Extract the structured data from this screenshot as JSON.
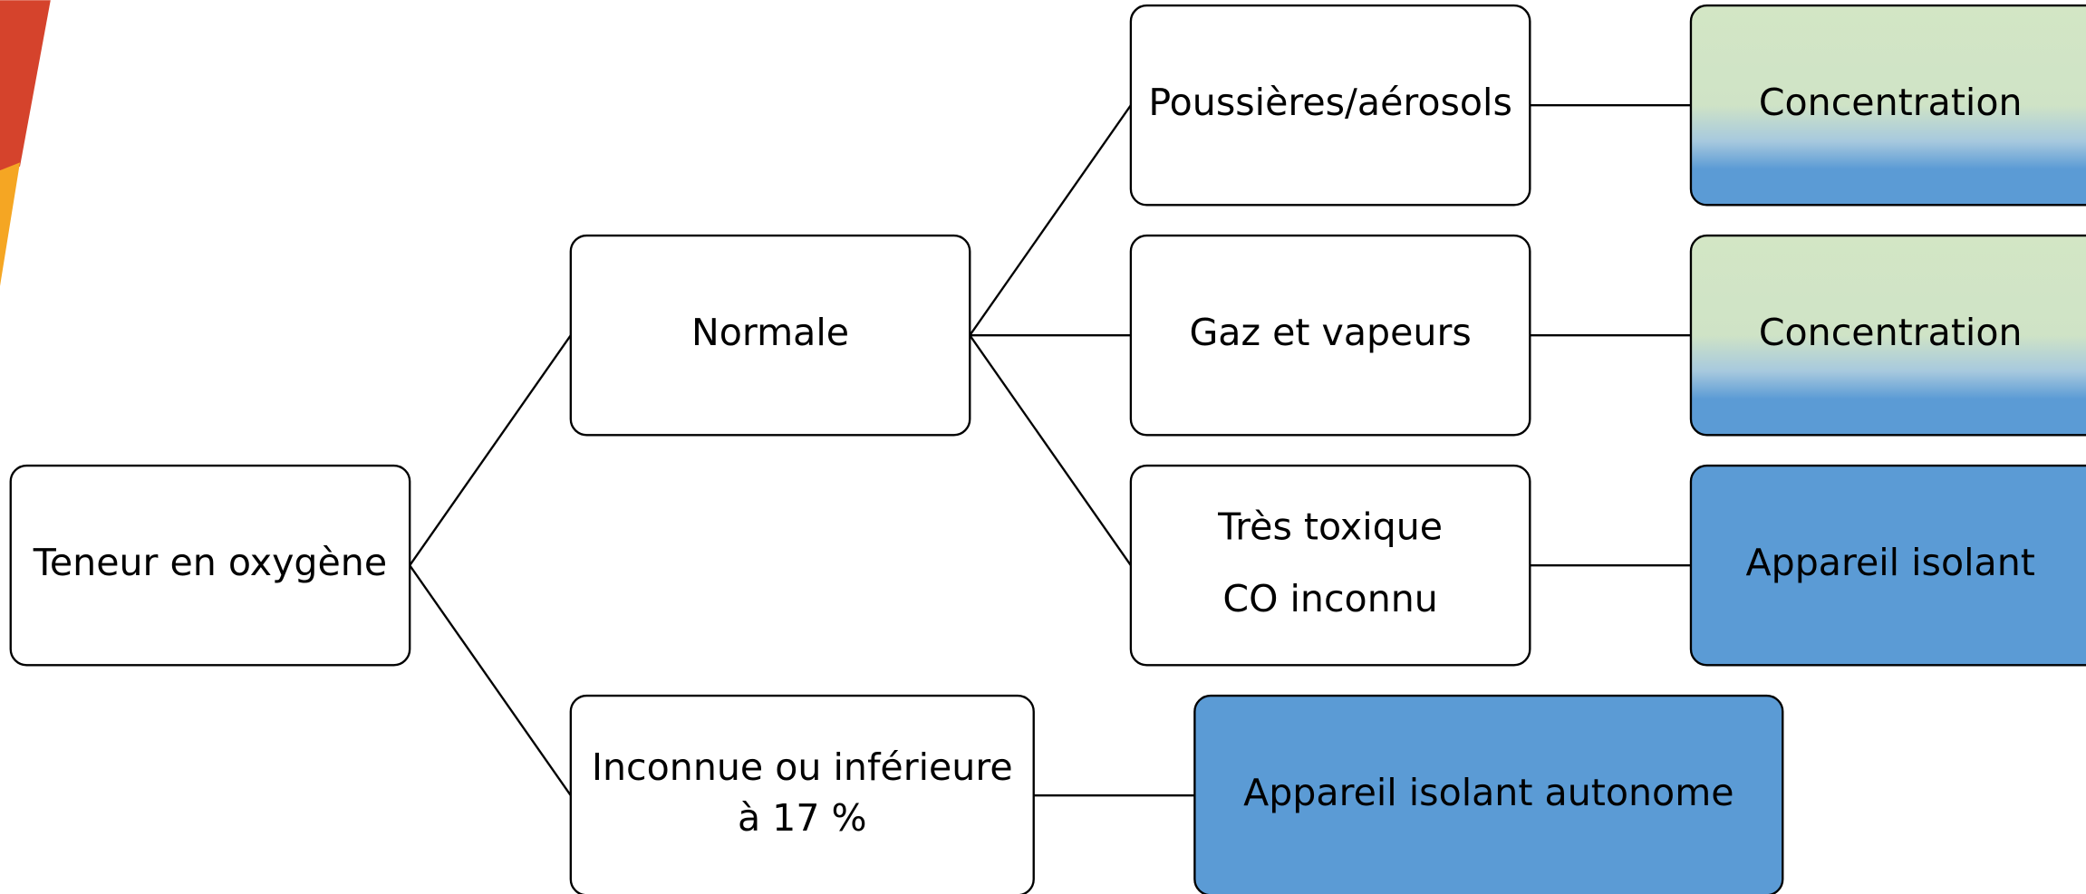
{
  "nodes": [
    {
      "lines": [
        "Teneur en oxygène"
      ]
    },
    {
      "lines": [
        "Normale"
      ]
    },
    {
      "lines": [
        "Inconnue ou inférieure",
        "à 17 %"
      ]
    },
    {
      "lines": [
        "Poussières/aérosols"
      ]
    },
    {
      "lines": [
        "Gaz et vapeurs"
      ]
    },
    {
      "lines": [
        "Très toxique",
        "CO inconnu"
      ]
    },
    {
      "lines": [
        "Concentration"
      ]
    },
    {
      "lines": [
        "Concentration"
      ]
    },
    {
      "lines": [
        "Appareil isolant"
      ]
    },
    {
      "lines": [
        "Appareil isolant autonome"
      ]
    }
  ]
}
